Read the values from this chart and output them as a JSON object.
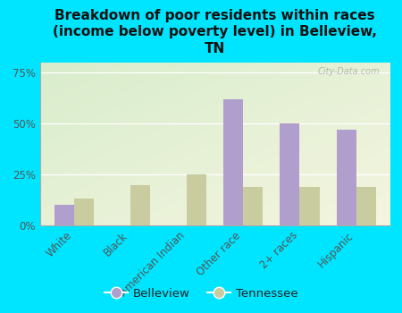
{
  "title": "Breakdown of poor residents within races\n(income below poverty level) in Belleview,\nTN",
  "categories": [
    "White",
    "Black",
    "American Indian",
    "Other race",
    "2+ races",
    "Hispanic"
  ],
  "belleview": [
    10,
    0,
    0,
    62,
    50,
    47
  ],
  "tennessee": [
    13,
    20,
    25,
    19,
    19,
    19
  ],
  "belleview_color": "#b09fcc",
  "tennessee_color": "#c8cc9f",
  "bar_width": 0.35,
  "ylim": [
    0,
    80
  ],
  "yticks": [
    0,
    25,
    50,
    75
  ],
  "ytick_labels": [
    "0%",
    "25%",
    "50%",
    "75%"
  ],
  "bg_color_topleft": "#d8edcc",
  "bg_color_bottomright": "#f0f0d8",
  "outer_bg": "#00e5ff",
  "title_fontsize": 11,
  "watermark": "City-Data.com",
  "legend_belleview": "Belleview",
  "legend_tennessee": "Tennessee"
}
